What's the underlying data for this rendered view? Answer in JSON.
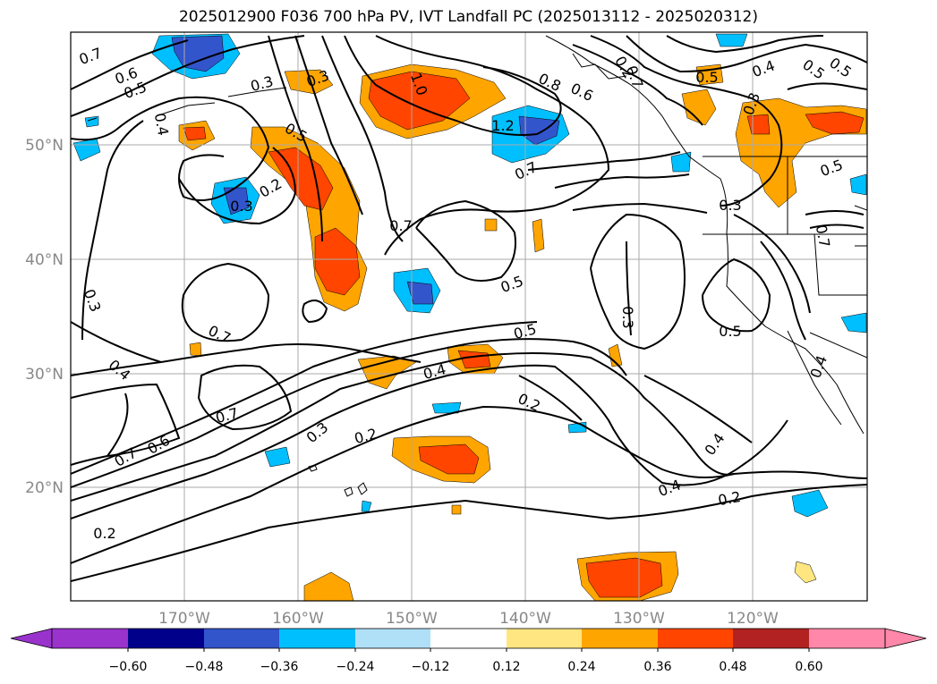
{
  "title": "2025012900 F036 700 hPa PV, IVT Landfall PC (2025013112 - 2025020312)",
  "lat_labels": [
    "50°N",
    "40°N",
    "30°N",
    "20°N"
  ],
  "lon_labels": [
    "170°W",
    "160°W",
    "150°W",
    "140°W",
    "130°W",
    "120°W"
  ],
  "colorbar": {
    "ticks": [
      "−0.60",
      "−0.48",
      "−0.36",
      "−0.24",
      "−0.12",
      "0.12",
      "0.24",
      "0.36",
      "0.48",
      "0.60"
    ],
    "colors": [
      "#9933cc",
      "#00008b",
      "#3355cc",
      "#00bfff",
      "#b0e0f8",
      "#ffffff",
      "#ffe680",
      "#ffa500",
      "#ff4500",
      "#b22222",
      "#ff88aa"
    ]
  },
  "contour_labels": [
    "0.7",
    "0.6",
    "0.5",
    "0.4",
    "0.3",
    "0.3",
    "0.2",
    "0.3",
    "0.5",
    "1.0",
    "1.2",
    "0.8",
    "0.6",
    "0.7",
    "0.5",
    "0.4",
    "0.5",
    "0.3",
    "0.3",
    "0.5",
    "0.5",
    "0.7",
    "0.5",
    "0.5",
    "0.4",
    "0.5",
    "0.3",
    "0.7",
    "0.7",
    "0.4",
    "0.6",
    "0.7",
    "0.3",
    "0.2",
    "0.4",
    "0.2",
    "0.2",
    "0.4",
    "0.4",
    "0.2",
    "0.2",
    "0.7",
    "0.7",
    "0.3"
  ]
}
